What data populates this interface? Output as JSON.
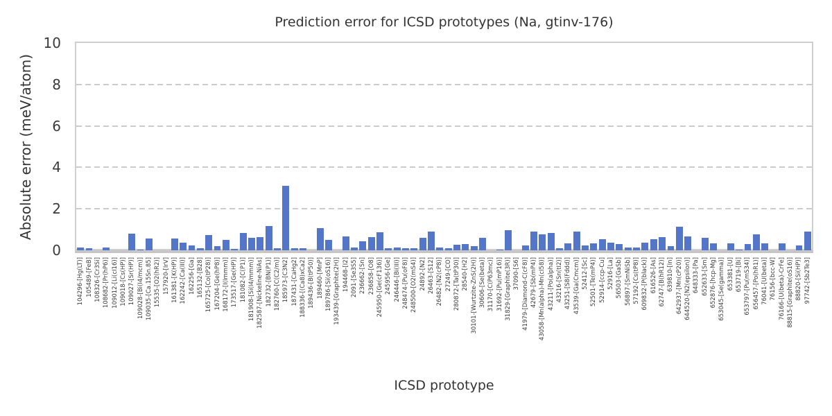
{
  "chart_data": {
    "type": "bar",
    "title": "Prediction error for ICSD prototypes (Na, gtinv-176)",
    "xlabel": "ICSD prototype",
    "ylabel": "Absolute error (meV/atom)",
    "ylim": [
      0,
      10
    ],
    "yticks": [
      0,
      2,
      4,
      6,
      8,
      10
    ],
    "grid": "horizontal-dashed",
    "legend": "none",
    "bar_color": "#5476c8",
    "categories": [
      "104296-[Hg(LT)]",
      "105489-[FeB]",
      "108326-[Cr3Si]",
      "108682-[Pr(hP6)]",
      "109012-[Li(cI16)]",
      "109018-[Cs(HP)]",
      "109027-[Sr(HP)]",
      "109028-[Bi(I4/mcm)]",
      "109035-[Ca.15Sn.85]",
      "15535-[O2(hR2)]",
      "157920-[IrV]",
      "161381-[K(HP)]",
      "162242-[Ca(III)]",
      "162256-[Ga]",
      "165132-[B28]",
      "165725-[Co(tP28)]",
      "167204-[Ge(hP8)]",
      "168172-[I(Immm)]",
      "173517-[Ge(HP)]",
      "181082-[C(P1)]",
      "181908-[Si(I4/mmm)]",
      "182587-[Nickeline-NiAs]",
      "182732-[BN(P1)]",
      "182760-[C(C2/m)]",
      "185973-[C3N2]",
      "187431-[CaHg2]",
      "188336-[(Ca8)xCa2]",
      "189436-[B(tP50)]",
      "189460-[MnP]",
      "189786-[Si(oS16)]",
      "193439-[Graphite(2H)]",
      "194468-[I2]",
      "2091-[Se3S5]",
      "236662-[Sn]",
      "236858-[O8]",
      "245950-[Ge(cF136)]",
      "245956-[Ge]",
      "246446-[Bi(III)]",
      "248474-[Pu(oF8)]",
      "248500-[O2(mS4)]",
      "24892-[N2]",
      "26463-[S12]",
      "26482-[N2(cP8)]",
      "27249-[CO]",
      "280872-[Ta(tP30)]",
      "28540-[H2]",
      "30101-[Wurtzite-ZnS(2H)]",
      "30606-[Se(beta)]",
      "31170-[C(P63mc)]",
      "31692-[Pu(mP16)]",
      "31829-[Graphite(3R)]",
      "37090-[S6]",
      "41979-[Diamond-C(cF8)]",
      "42679-[Sb(mP4)]",
      "43058-[Mn(alpha)-Mn(cI58)]",
      "43211-[Po(alpha)]",
      "43216-[Sn(tI2)]",
      "43251-[S8(Fddd)]",
      "43539-[Ga(Cmcm)]",
      "52412-[Sc]",
      "52501-[Te(mP4)]",
      "52914-[ccp-Cu]",
      "52916-[La]",
      "56503-[GaSb]",
      "56897-[SmNiSb]",
      "57192-[Cs(tP8)]",
      "609832-[P(black)]",
      "616526-[As]",
      "62747-[B(hR12)]",
      "639810-[In]",
      "642937-[Mn(cP20)]",
      "644520-[N2(epsilon)]",
      "648333-[Pa]",
      "652633-[Sm]",
      "652876-[hcp-Mg]",
      "653045-[Se(gamma)]",
      "653381-[U]",
      "653719-[Bi]",
      "653797-[Pu(mS34)]",
      "656457-[Po(hR1)]",
      "76041-[U(beta)]",
      "76156-[bcc-W]",
      "76166-[U(beta)-CrFe]",
      "88815-[Graphite(oS16)]",
      "88820-[Si(HP)]",
      "97742-[Sb2Te3]"
    ],
    "values": [
      0.12,
      0.1,
      0.0,
      0.12,
      0.0,
      0.0,
      0.8,
      0.05,
      0.58,
      0.0,
      0.0,
      0.57,
      0.38,
      0.24,
      0.11,
      0.74,
      0.19,
      0.49,
      0.08,
      0.85,
      0.6,
      0.62,
      1.18,
      0.11,
      3.1,
      0.09,
      0.11,
      0.0,
      1.06,
      0.5,
      0.0,
      0.66,
      0.12,
      0.42,
      0.64,
      0.88,
      0.09,
      0.13,
      0.11,
      0.09,
      0.6,
      0.92,
      0.13,
      0.11,
      0.27,
      0.3,
      0.2,
      0.6,
      0.0,
      0.05,
      0.96,
      0.0,
      0.24,
      0.92,
      0.76,
      0.82,
      0.09,
      0.33,
      0.92,
      0.24,
      0.33,
      0.55,
      0.38,
      0.3,
      0.14,
      0.13,
      0.38,
      0.52,
      0.63,
      0.2,
      1.15,
      0.68,
      0.0,
      0.6,
      0.35,
      0.0,
      0.35,
      0.05,
      0.3,
      0.77,
      0.35,
      0.0,
      0.33,
      0.0,
      0.22,
      0.9
    ]
  }
}
